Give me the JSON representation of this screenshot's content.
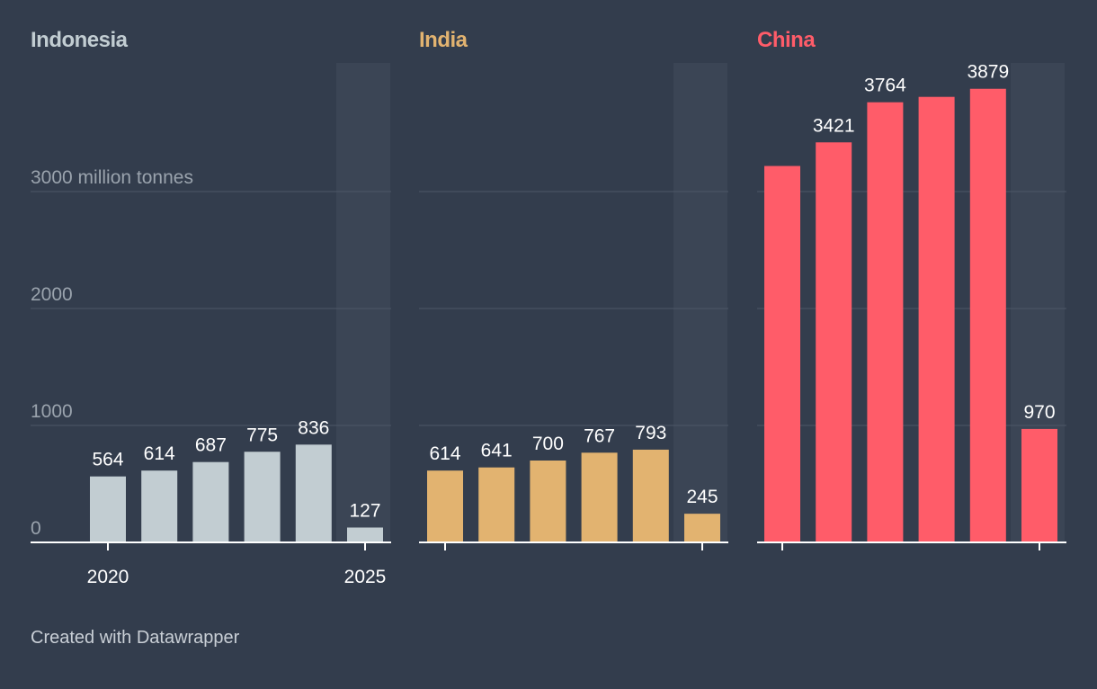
{
  "chart_data": {
    "type": "bar",
    "layout": "small-multiples",
    "x": [
      2020,
      2021,
      2022,
      2023,
      2024,
      2025
    ],
    "x_tick_labels": [
      "2020",
      "2025"
    ],
    "y_tick_labels": [
      "3000 million tonnes",
      "2000",
      "1000",
      "0"
    ],
    "y_ticks": [
      0,
      1000,
      2000,
      3000
    ],
    "ylim": [
      0,
      4100
    ],
    "highlighted_period": "2025",
    "panels": [
      {
        "name": "Indonesia",
        "color": "#c2cdd2",
        "values": [
          564,
          614,
          687,
          775,
          836,
          127
        ],
        "labels": [
          "564",
          "614",
          "687",
          "775",
          "836",
          "127"
        ]
      },
      {
        "name": "India",
        "color": "#e2b370",
        "values": [
          614,
          641,
          700,
          767,
          793,
          245
        ],
        "labels": [
          "614",
          "641",
          "700",
          "767",
          "793",
          "245"
        ]
      },
      {
        "name": "China",
        "color": "#ff5c69",
        "values": [
          3219,
          3421,
          3764,
          3810,
          3879,
          970
        ],
        "labels": [
          "",
          "3421",
          "3764",
          "",
          "3879",
          "970"
        ]
      }
    ]
  },
  "footer": {
    "text": "Created with Datawrapper"
  }
}
